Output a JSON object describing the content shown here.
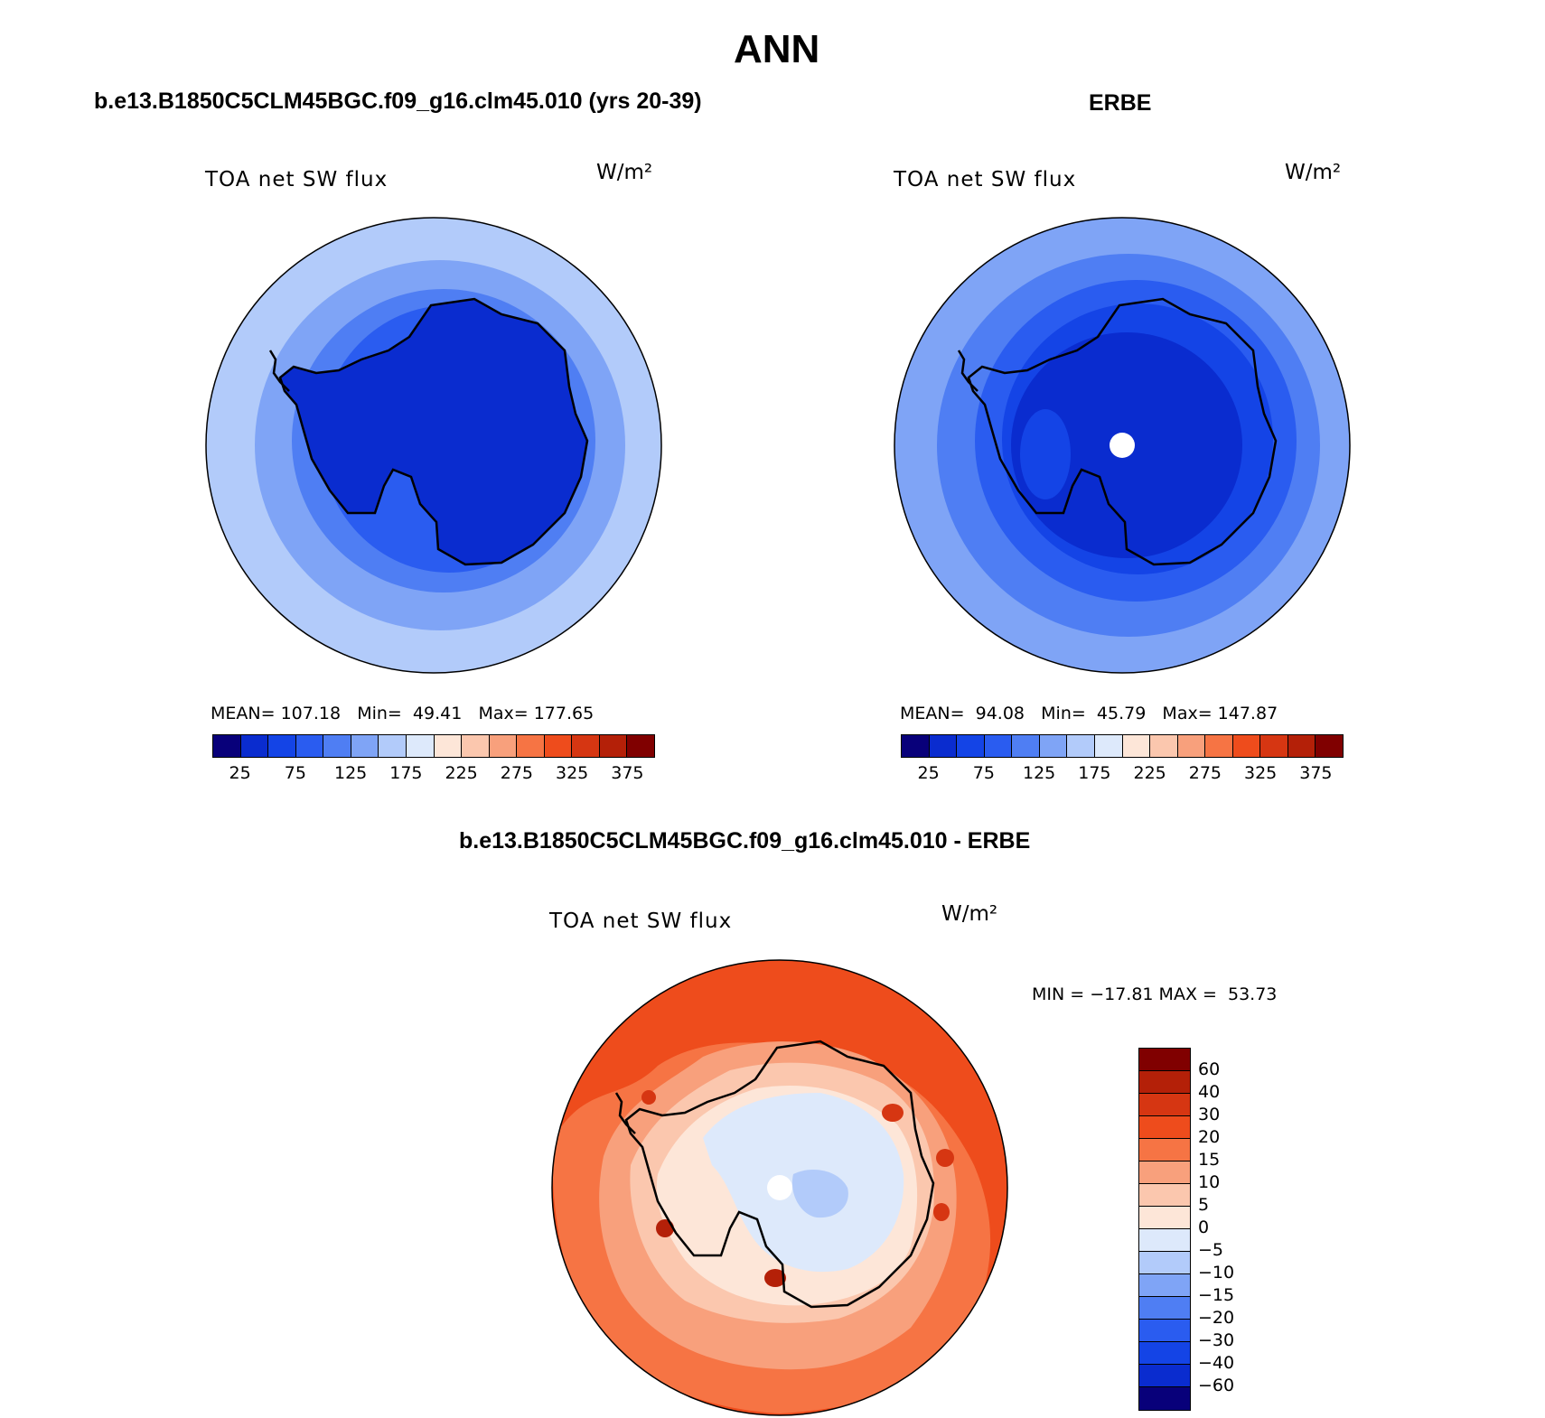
{
  "figure": {
    "title": "ANN"
  },
  "panels": [
    {
      "heading": "b.e13.B1850C5CLM45BGC.f09_g16.clm45.010 (yrs 20-39)",
      "variable": "TOA net SW flux",
      "units": "W/m²",
      "stats": {
        "mean_label": "MEAN=",
        "mean": "107.18",
        "min_label": "Min=",
        "min": "49.41",
        "max_label": "Max=",
        "max": "177.65"
      },
      "hole_at_pole": false
    },
    {
      "heading": "ERBE",
      "variable": "TOA net SW flux",
      "units": "W/m²",
      "stats": {
        "mean_label": "MEAN=",
        "mean": "94.08",
        "min_label": "Min=",
        "min": "45.79",
        "max_label": "Max=",
        "max": "147.87"
      },
      "hole_at_pole": true
    },
    {
      "heading": "b.e13.B1850C5CLM45BGC.f09_g16.clm45.010 - ERBE",
      "variable": "TOA net SW flux",
      "units": "W/m²",
      "stats_line": "MIN = −17.81 MAX =  53.73"
    }
  ],
  "colorbar_abs": {
    "colors": [
      "#08007a",
      "#0a2ccf",
      "#1444e6",
      "#2a5cf0",
      "#4f7ef3",
      "#7fa4f6",
      "#b2cbfa",
      "#dde9fb",
      "#fde6d8",
      "#fbc7ae",
      "#f8a07c",
      "#f67444",
      "#ee4c1c",
      "#d63612",
      "#b42008",
      "#800000"
    ],
    "labels": [
      "25",
      "75",
      "125",
      "175",
      "225",
      "275",
      "325",
      "375"
    ]
  },
  "colorbar_diff": {
    "colors": [
      "#800000",
      "#b42008",
      "#d63612",
      "#ee4c1c",
      "#f67444",
      "#f8a07c",
      "#fbc7ae",
      "#fde6d8",
      "#dde9fb",
      "#b2cbfa",
      "#7fa4f6",
      "#4f7ef3",
      "#2a5cf0",
      "#1444e6",
      "#0a2ccf",
      "#08007a"
    ],
    "labels": [
      "60",
      "40",
      "30",
      "20",
      "15",
      "10",
      "5",
      "0",
      "−5",
      "−10",
      "−15",
      "−20",
      "−30",
      "−40",
      "−60"
    ]
  },
  "map_colors": {
    "p1": [
      "#b2cbfa",
      "#7fa4f6",
      "#4f7ef3",
      "#2a5cf0",
      "#0a2ccf"
    ],
    "p2": [
      "#7fa4f6",
      "#4f7ef3",
      "#2a5cf0",
      "#1444e6",
      "#0a2ccf"
    ],
    "diff": [
      "#ee4c1c",
      "#f67444",
      "#f8a07c",
      "#fbc7ae",
      "#fde6d8",
      "#dde9fb",
      "#b2cbfa"
    ]
  }
}
